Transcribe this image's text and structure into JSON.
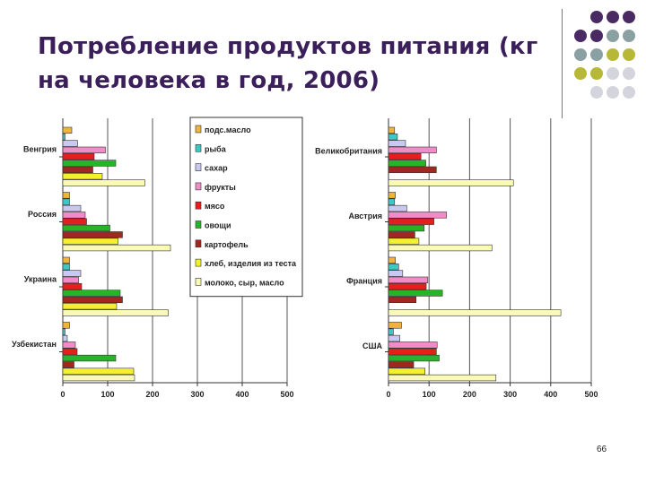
{
  "slide": {
    "title": "Потребление продуктов питания (кг на человека в год, 2006)",
    "page_number": "66"
  },
  "decor": {
    "dot_colors": [
      "#4a2a62",
      "#8aa0a3",
      "#b8b838",
      "#d4d4dc"
    ]
  },
  "chart_data": [
    {
      "type": "bar",
      "orientation": "horizontal",
      "categories": [
        "Венгрия",
        "Россия",
        "Украина",
        "Узбекистан"
      ],
      "xlim": [
        0,
        500
      ],
      "x_ticks": [
        "0",
        "100",
        "200",
        "300",
        "400",
        "500"
      ],
      "grid": true,
      "legend_position": "top-right",
      "series": [
        {
          "name": "подс.масло",
          "color": "#f0b43c",
          "values": [
            20,
            15,
            15,
            15
          ]
        },
        {
          "name": "рыба",
          "color": "#3cc8c8",
          "values": [
            5,
            15,
            15,
            5
          ]
        },
        {
          "name": "сахар",
          "color": "#c8c8f0",
          "values": [
            33,
            40,
            40,
            10
          ]
        },
        {
          "name": "фрукты",
          "color": "#f08cc8",
          "values": [
            95,
            50,
            35,
            28
          ]
        },
        {
          "name": "мясо",
          "color": "#e61e1e",
          "values": [
            70,
            53,
            42,
            32
          ]
        },
        {
          "name": "овощи",
          "color": "#28b428",
          "values": [
            118,
            105,
            128,
            118
          ]
        },
        {
          "name": "картофель",
          "color": "#a0281e",
          "values": [
            67,
            133,
            133,
            25
          ]
        },
        {
          "name": "хлеб, изделия из теста",
          "color": "#f5f02d",
          "values": [
            88,
            123,
            120,
            158
          ]
        },
        {
          "name": "молоко, сыр, масло",
          "color": "#fafab4",
          "values": [
            183,
            240,
            235,
            160
          ]
        }
      ]
    },
    {
      "type": "bar",
      "orientation": "horizontal",
      "categories": [
        "Великобритания",
        "Австрия",
        "Франция",
        "США"
      ],
      "xlim": [
        0,
        500
      ],
      "x_ticks": [
        "0",
        "100",
        "200",
        "300",
        "400",
        "500"
      ],
      "grid": true,
      "series": [
        {
          "name": "подс.масло",
          "color": "#f0b43c",
          "values": [
            15,
            17,
            17,
            32
          ]
        },
        {
          "name": "рыба",
          "color": "#3cc8c8",
          "values": [
            22,
            15,
            25,
            12
          ]
        },
        {
          "name": "сахар",
          "color": "#c8c8f0",
          "values": [
            42,
            45,
            35,
            28
          ]
        },
        {
          "name": "фрукты",
          "color": "#f08cc8",
          "values": [
            118,
            143,
            97,
            120
          ]
        },
        {
          "name": "мясо",
          "color": "#e61e1e",
          "values": [
            80,
            112,
            93,
            118
          ]
        },
        {
          "name": "овощи",
          "color": "#28b428",
          "values": [
            92,
            88,
            133,
            125
          ]
        },
        {
          "name": "картофель",
          "color": "#a0281e",
          "values": [
            118,
            65,
            68,
            62
          ]
        },
        {
          "name": "хлеб, изделия из теста",
          "color": "#f5f02d",
          "values": [
            0,
            75,
            0,
            90
          ]
        },
        {
          "name": "молоко, сыр, масло",
          "color": "#fafab4",
          "values": [
            308,
            255,
            425,
            265
          ]
        }
      ]
    }
  ]
}
